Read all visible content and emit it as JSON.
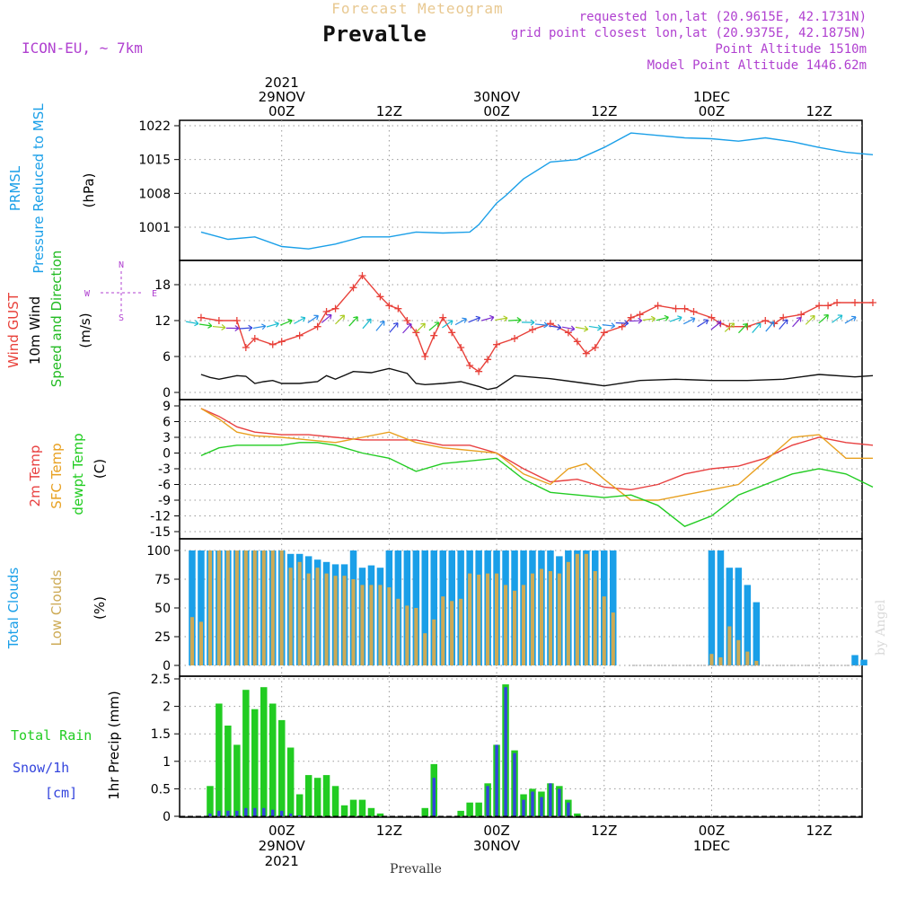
{
  "header": {
    "forecast_label": "Forecast Meteogram",
    "title": "Prevalle",
    "model": "ICON-EU, ~ 7km",
    "requested": "requested lon,lat (20.9615E, 42.1731N)",
    "grid_point": "grid point closest lon,lat (20.9375E, 42.1875N)",
    "point_altitude": "Point Altitude 1510m",
    "model_altitude": "Model Point Altitude 1446.62m",
    "footer_title": "Prevalle",
    "credit": "by Angel"
  },
  "colors": {
    "pressure": "#1a9fe8",
    "gust": "#e8413a",
    "wind": "#111111",
    "direction_label": "#22bb22",
    "temp2m": "#e84040",
    "sfc_temp": "#e8a020",
    "dewpt": "#22cc22",
    "total_clouds": "#1a9fe8",
    "low_clouds": "#cdaa55",
    "rain": "#22cc22",
    "snow": "#3344dd",
    "axis_label_purple": "#b040d0"
  },
  "chart_data": [
    {
      "type": "line",
      "panel": "pressure",
      "ylabel_lines": [
        "PRMSL",
        "Pressure Reduced to MSL"
      ],
      "units": "(hPa)",
      "yticks": [
        1001,
        1008,
        1015,
        1022
      ],
      "ylim": [
        995,
        1023
      ],
      "x_hours_from_29NOV00Z": "see series.x",
      "series": [
        {
          "x": [
            -9,
            -6,
            -3,
            0,
            3,
            6,
            9,
            12,
            15,
            18,
            21,
            22,
            24,
            25,
            27,
            30,
            33,
            36,
            39,
            42,
            45,
            48,
            51,
            54,
            57,
            60,
            63,
            66
          ],
          "values": [
            1000,
            998.5,
            999,
            997,
            996.5,
            997.5,
            999,
            999,
            1000,
            999.8,
            1000,
            1001.5,
            1006,
            1007.5,
            1011,
            1014.5,
            1015,
            1017.5,
            1020.5,
            1020,
            1019.5,
            1019.3,
            1018.8,
            1019.5,
            1018.7,
            1017.5,
            1016.5,
            1016
          ]
        }
      ]
    },
    {
      "type": "line",
      "panel": "wind",
      "ylabel_lines": [
        "Wind GUST",
        "10m Wind",
        "Speed and Direction"
      ],
      "units": "(m/s)",
      "compass": {
        "n": "N",
        "s": "S",
        "w": "W",
        "e": "E"
      },
      "yticks": [
        0,
        6,
        12,
        18
      ],
      "ylim": [
        -1,
        21
      ],
      "series": [
        {
          "name": "Wind GUST",
          "x": [
            -9,
            -7,
            -5,
            -4,
            -3,
            -1,
            0,
            2,
            4,
            5,
            6,
            8,
            9,
            11,
            12,
            13,
            14,
            15,
            16,
            17,
            18,
            19,
            20,
            21,
            22,
            23,
            24,
            26,
            28,
            30,
            32,
            33,
            34,
            35,
            36,
            38,
            39,
            40,
            42,
            44,
            45,
            46,
            48,
            49,
            50,
            52,
            54,
            55,
            56,
            58,
            60,
            61,
            62,
            64,
            66
          ],
          "values": [
            12.5,
            12,
            12,
            7.5,
            9,
            8,
            8.5,
            9.5,
            11,
            13.5,
            14,
            17.5,
            19.5,
            16,
            14.5,
            14,
            12,
            10,
            6,
            9.5,
            12.5,
            10,
            7.5,
            4.5,
            3.5,
            5.5,
            8,
            9,
            10.5,
            11.5,
            10,
            8.5,
            6.5,
            7.5,
            10,
            11,
            12.5,
            13,
            14.5,
            14,
            14,
            13.5,
            12.5,
            11.5,
            11,
            11,
            12,
            11.5,
            12.5,
            13,
            14.5,
            14.5,
            15,
            15,
            15
          ]
        },
        {
          "name": "10m Wind",
          "x": [
            -9,
            -8,
            -7,
            -6,
            -5,
            -4,
            -3,
            -2,
            -1,
            0,
            1,
            2,
            4,
            5,
            6,
            8,
            10,
            12,
            14,
            15,
            16,
            18,
            20,
            22,
            23,
            24,
            26,
            30,
            34,
            36,
            40,
            44,
            48,
            52,
            56,
            60,
            64,
            66
          ],
          "values": [
            3,
            2.5,
            2.2,
            2.5,
            2.8,
            2.7,
            1.5,
            1.8,
            2,
            1.5,
            1.5,
            1.5,
            1.8,
            2.8,
            2.2,
            3.5,
            3.3,
            4,
            3.2,
            1.5,
            1.3,
            1.5,
            1.8,
            1,
            0.5,
            0.8,
            2.8,
            2.3,
            1.5,
            1.1,
            2,
            2.2,
            2,
            2,
            2.2,
            3,
            2.6,
            2.8
          ]
        }
      ]
    },
    {
      "type": "line",
      "panel": "temperature",
      "ylabel_lines": [
        "2m Temp",
        "SFC Temp",
        "dewpt Temp"
      ],
      "units": "(C)",
      "yticks": [
        9,
        6,
        3,
        0,
        -3,
        -6,
        -9,
        -12,
        -15
      ],
      "ylim": [
        -16,
        10
      ],
      "series": [
        {
          "name": "2m Temp",
          "x": [
            -9,
            -7,
            -5,
            -3,
            0,
            3,
            6,
            9,
            12,
            15,
            18,
            21,
            24,
            27,
            30,
            33,
            36,
            39,
            42,
            45,
            48,
            51,
            54,
            57,
            60,
            63,
            66
          ],
          "values": [
            8.5,
            7,
            5,
            4,
            3.5,
            3.5,
            3,
            2.5,
            2.5,
            2.5,
            1.5,
            1.5,
            0,
            -3,
            -5.5,
            -5,
            -6.5,
            -7,
            -6,
            -4,
            -3,
            -2.5,
            -1,
            1.5,
            3,
            2,
            1.5
          ]
        },
        {
          "name": "SFC Temp",
          "x": [
            -9,
            -7,
            -5,
            -3,
            0,
            3,
            6,
            9,
            12,
            15,
            18,
            21,
            24,
            27,
            30,
            32,
            34,
            36,
            39,
            42,
            45,
            48,
            51,
            54,
            57,
            60,
            63,
            66
          ],
          "values": [
            8.5,
            6.5,
            4,
            3.3,
            3,
            2.5,
            2,
            3,
            4,
            2,
            1,
            0.5,
            0,
            -4,
            -6,
            -3,
            -2,
            -5,
            -9,
            -9,
            -8,
            -7,
            -6,
            -1.5,
            3,
            3.5,
            -1,
            -1
          ]
        },
        {
          "name": "dewpt Temp",
          "x": [
            -9,
            -7,
            -5,
            -3,
            0,
            2,
            4,
            6,
            9,
            12,
            15,
            18,
            21,
            24,
            27,
            30,
            33,
            36,
            39,
            42,
            45,
            48,
            51,
            54,
            57,
            60,
            63,
            66
          ],
          "values": [
            -0.5,
            1,
            1.5,
            1.5,
            1.5,
            2,
            2,
            1.5,
            0,
            -1,
            -3.5,
            -2,
            -1.5,
            -1,
            -5,
            -7.5,
            -8,
            -8.5,
            -8,
            -10,
            -14,
            -12,
            -8,
            -6,
            -4,
            -3,
            -4,
            -6.5
          ]
        }
      ]
    },
    {
      "type": "bar",
      "panel": "clouds",
      "ylabel_lines": [
        "Total Clouds",
        "Low Clouds"
      ],
      "units": "(%)",
      "yticks": [
        0,
        25,
        50,
        75,
        100
      ],
      "ylim": [
        0,
        100
      ],
      "series": [
        {
          "name": "Total Clouds",
          "x": [
            -10,
            -9,
            -8,
            -7,
            -6,
            -5,
            -4,
            -3,
            -2,
            -1,
            0,
            1,
            2,
            3,
            4,
            5,
            6,
            7,
            8,
            9,
            10,
            11,
            12,
            13,
            14,
            15,
            16,
            17,
            18,
            19,
            20,
            21,
            22,
            23,
            24,
            25,
            26,
            27,
            28,
            29,
            30,
            31,
            32,
            33,
            34,
            35,
            36,
            37,
            48,
            49,
            50,
            51,
            52,
            53,
            64,
            65
          ],
          "values": [
            100,
            100,
            100,
            100,
            100,
            100,
            100,
            100,
            100,
            100,
            100,
            97,
            97,
            95,
            92,
            90,
            88,
            88,
            100,
            85,
            87,
            85,
            100,
            100,
            100,
            100,
            100,
            100,
            100,
            100,
            100,
            100,
            100,
            100,
            100,
            100,
            100,
            100,
            100,
            100,
            100,
            95,
            100,
            100,
            100,
            100,
            100,
            100,
            100,
            100,
            85,
            85,
            70,
            55,
            9,
            5
          ]
        },
        {
          "name": "Low Clouds",
          "x": [
            -10,
            -9,
            -8,
            -7,
            -6,
            -5,
            -4,
            -3,
            -2,
            -1,
            0,
            1,
            2,
            3,
            4,
            5,
            6,
            7,
            8,
            9,
            10,
            11,
            12,
            13,
            14,
            15,
            16,
            17,
            18,
            19,
            20,
            21,
            22,
            23,
            24,
            25,
            26,
            27,
            28,
            29,
            30,
            31,
            32,
            33,
            34,
            35,
            36,
            37,
            48,
            49,
            50,
            51,
            52,
            53,
            64,
            65
          ],
          "values": [
            42,
            38,
            100,
            100,
            100,
            100,
            100,
            100,
            100,
            100,
            100,
            85,
            90,
            80,
            85,
            80,
            78,
            78,
            75,
            70,
            70,
            70,
            68,
            58,
            52,
            50,
            28,
            40,
            60,
            56,
            58,
            80,
            79,
            80,
            80,
            70,
            65,
            70,
            80,
            84,
            82,
            80,
            90,
            97,
            97,
            82,
            60,
            46,
            10,
            7,
            34,
            22,
            12,
            4,
            0,
            0
          ]
        }
      ]
    },
    {
      "type": "bar",
      "panel": "precip",
      "ylabel_lines": [
        "1hr Precip (mm)"
      ],
      "left_labels": [
        "Total  Rain",
        "Snow/1h",
        "[cm]"
      ],
      "yticks": [
        0,
        0.5,
        1,
        1.5,
        2,
        2.5
      ],
      "ylim": [
        0,
        2.5
      ],
      "series": [
        {
          "name": "Total Rain",
          "x": [
            -8,
            -7,
            -6,
            -5,
            -4,
            -3,
            -2,
            -1,
            0,
            1,
            2,
            3,
            4,
            5,
            6,
            7,
            8,
            9,
            10,
            11,
            16,
            17,
            20,
            21,
            22,
            23,
            24,
            25,
            26,
            27,
            28,
            29,
            30,
            31,
            32,
            33
          ],
          "values": [
            0.55,
            2.05,
            1.65,
            1.3,
            2.3,
            1.95,
            2.35,
            2.05,
            1.75,
            1.25,
            0.4,
            0.75,
            0.7,
            0.75,
            0.55,
            0.2,
            0.3,
            0.3,
            0.15,
            0.05,
            0.15,
            0.95,
            0.1,
            0.25,
            0.25,
            0.6,
            1.3,
            2.4,
            1.2,
            0.4,
            0.5,
            0.45,
            0.6,
            0.55,
            0.3,
            0.05
          ]
        },
        {
          "name": "Snow/1h",
          "x": [
            -8,
            -7,
            -6,
            -5,
            -4,
            -3,
            -2,
            -1,
            0,
            1,
            2,
            17,
            23,
            24,
            25,
            26,
            27,
            28,
            29,
            30,
            31,
            32
          ],
          "values": [
            0.05,
            0.1,
            0.1,
            0.1,
            0.15,
            0.15,
            0.15,
            0.12,
            0.1,
            0.05,
            0.02,
            0.7,
            0.55,
            1.3,
            2.35,
            1.15,
            0.3,
            0.45,
            0.35,
            0.6,
            0.5,
            0.25
          ]
        }
      ]
    }
  ],
  "xaxis": {
    "top": [
      {
        "hour": 0,
        "lines": [
          "2021",
          "29NOV",
          "00Z"
        ]
      },
      {
        "hour": 12,
        "lines": [
          "12Z"
        ]
      },
      {
        "hour": 24,
        "lines": [
          "30NOV",
          "00Z"
        ]
      },
      {
        "hour": 36,
        "lines": [
          "12Z"
        ]
      },
      {
        "hour": 48,
        "lines": [
          "1DEC",
          "00Z"
        ]
      },
      {
        "hour": 60,
        "lines": [
          "12Z"
        ]
      }
    ],
    "bottom": [
      {
        "hour": 0,
        "lines": [
          "00Z",
          "29NOV",
          "2021"
        ]
      },
      {
        "hour": 12,
        "lines": [
          "12Z"
        ]
      },
      {
        "hour": 24,
        "lines": [
          "00Z",
          "30NOV"
        ]
      },
      {
        "hour": 36,
        "lines": [
          "12Z"
        ]
      },
      {
        "hour": 48,
        "lines": [
          "00Z",
          "1DEC"
        ]
      },
      {
        "hour": 60,
        "lines": [
          "12Z"
        ]
      }
    ],
    "range_hours": [
      -11.4,
      64.8
    ]
  }
}
